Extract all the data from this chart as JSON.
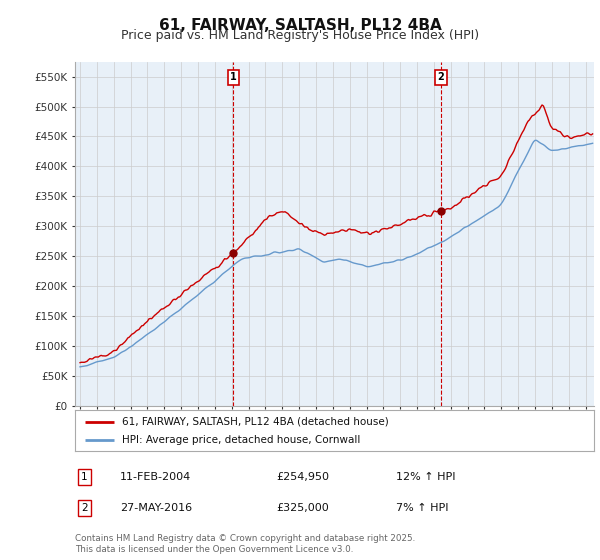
{
  "title": "61, FAIRWAY, SALTASH, PL12 4BA",
  "subtitle": "Price paid vs. HM Land Registry's House Price Index (HPI)",
  "yticks": [
    0,
    50000,
    100000,
    150000,
    200000,
    250000,
    300000,
    350000,
    400000,
    450000,
    500000,
    550000
  ],
  "ylim": [
    0,
    575000
  ],
  "xlim_start": 1994.7,
  "xlim_end": 2025.5,
  "hpi_color": "#6699CC",
  "price_color": "#CC0000",
  "bg_panel_color": "#E8F0F8",
  "marker1_x": 2004.1,
  "marker1_y": 254950,
  "marker2_x": 2016.41,
  "marker2_y": 325000,
  "legend_label1": "61, FAIRWAY, SALTASH, PL12 4BA (detached house)",
  "legend_label2": "HPI: Average price, detached house, Cornwall",
  "marker1_date": "11-FEB-2004",
  "marker1_price": "£254,950",
  "marker1_hpi": "12% ↑ HPI",
  "marker2_date": "27-MAY-2016",
  "marker2_price": "£325,000",
  "marker2_hpi": "7% ↑ HPI",
  "footnote": "Contains HM Land Registry data © Crown copyright and database right 2025.\nThis data is licensed under the Open Government Licence v3.0.",
  "title_fontsize": 11,
  "subtitle_fontsize": 9,
  "grid_color": "#cccccc",
  "background_color": "#ffffff"
}
